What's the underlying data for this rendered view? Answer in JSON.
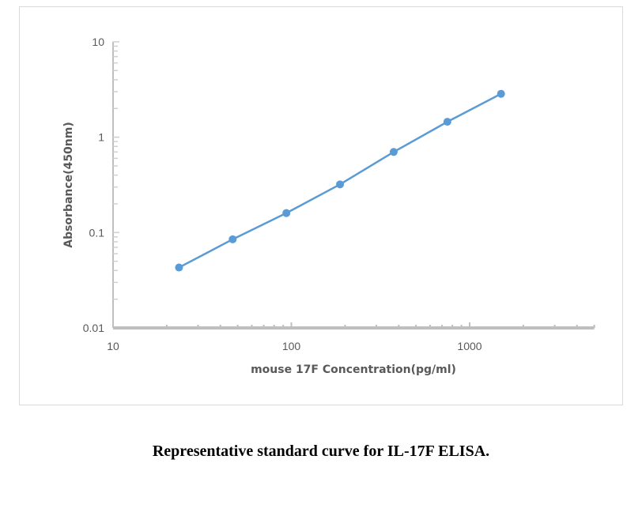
{
  "chart_data": {
    "type": "line",
    "title": "",
    "xlabel": "mouse 17F Concentration(pg/ml)",
    "ylabel": "Absorbance(450nm)",
    "x_scale": "log",
    "y_scale": "log",
    "xlim": [
      10,
      5000
    ],
    "ylim": [
      0.01,
      10
    ],
    "x_tick_labels": [
      "10",
      "100",
      "1000"
    ],
    "y_tick_labels": [
      "10",
      "1",
      "0.1",
      "0.01"
    ],
    "grid": false,
    "legend": null,
    "series": [
      {
        "name": "Standard curve",
        "color": "#5b9bd5",
        "x": [
          23.44,
          46.88,
          93.75,
          187.5,
          375,
          750,
          1500
        ],
        "y": [
          0.043,
          0.085,
          0.16,
          0.32,
          0.7,
          1.45,
          2.85
        ]
      }
    ]
  },
  "caption": "Representative standard curve for IL-17F ELISA.",
  "colors": {
    "series": "#5b9bd5",
    "axis": "#bfbfbf",
    "tick_text": "#595959",
    "frame_border": "#d9d9d9"
  }
}
